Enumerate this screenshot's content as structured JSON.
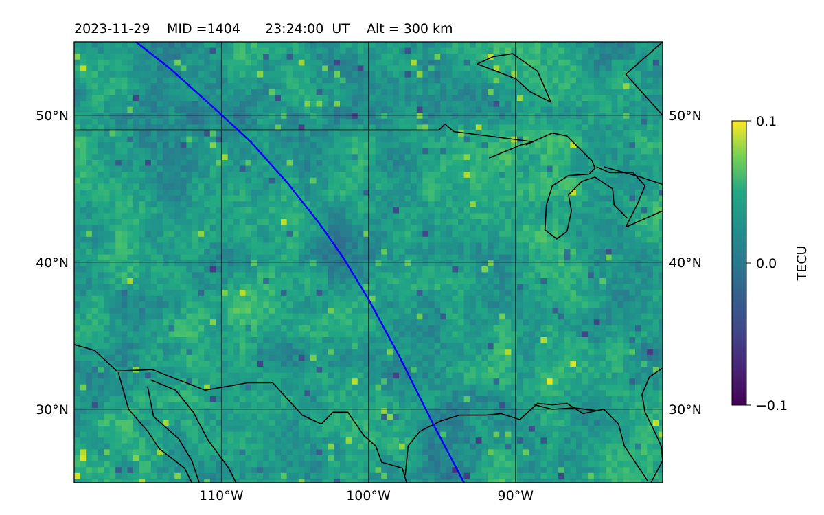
{
  "title": {
    "date": "2023-11-29",
    "mid": "MID =1404",
    "time": "23:24:00  UT",
    "alt": "Alt = 300 km"
  },
  "map": {
    "lon_range": [
      -120,
      -80
    ],
    "lat_range": [
      25,
      55
    ],
    "lat_ticks": [
      {
        "value": 50,
        "label": "50°N"
      },
      {
        "value": 40,
        "label": "40°N"
      },
      {
        "value": 30,
        "label": "30°N"
      }
    ],
    "lon_ticks": [
      {
        "value": -110,
        "label": "110°W"
      },
      {
        "value": -100,
        "label": "100°W"
      },
      {
        "value": -90,
        "label": "90°W"
      }
    ],
    "grid": true,
    "field": "dTEC",
    "colormap": "viridis",
    "track_color": "#0000ff",
    "track": [
      [
        -115.8,
        55
      ],
      [
        -113.5,
        53.2
      ],
      [
        -110.6,
        50.6
      ],
      [
        -108,
        48.2
      ],
      [
        -105.5,
        45.4
      ],
      [
        -103.3,
        42.6
      ],
      [
        -101.7,
        40.3
      ],
      [
        -100,
        37.5
      ],
      [
        -97.9,
        33.6
      ],
      [
        -95.6,
        29
      ],
      [
        -93.5,
        25
      ]
    ],
    "coastlines": [
      [
        [
          -120,
          49
        ],
        [
          -95.2,
          49
        ],
        [
          -94.8,
          49.4
        ],
        [
          -94.2,
          48.9
        ],
        [
          -88.8,
          48.2
        ],
        [
          -89.6,
          48.0
        ],
        [
          -91.8,
          47.1
        ]
      ],
      [
        [
          -120,
          34.4
        ],
        [
          -118.6,
          34.0
        ],
        [
          -117.1,
          32.6
        ],
        [
          -114.7,
          32.7
        ],
        [
          -111.1,
          31.3
        ],
        [
          -108.2,
          31.8
        ],
        [
          -106.5,
          31.8
        ],
        [
          -104.5,
          29.6
        ],
        [
          -103.2,
          29.0
        ],
        [
          -102.4,
          29.8
        ],
        [
          -101.4,
          29.8
        ],
        [
          -100.3,
          28.2
        ],
        [
          -99.5,
          27.5
        ],
        [
          -99.1,
          26.4
        ],
        [
          -97.7,
          26.0
        ],
        [
          -97.4,
          25.0
        ]
      ],
      [
        [
          -114.8,
          32.0
        ],
        [
          -113.1,
          31.3
        ],
        [
          -111.9,
          29.8
        ],
        [
          -110.9,
          27.9
        ],
        [
          -109.5,
          26.0
        ],
        [
          -109.0,
          25.0
        ]
      ],
      [
        [
          -115.0,
          31.5
        ],
        [
          -114.6,
          29.5
        ],
        [
          -112.9,
          28.0
        ],
        [
          -112.0,
          26.5
        ],
        [
          -111.5,
          25.0
        ]
      ],
      [
        [
          -117.0,
          32.5
        ],
        [
          -116.3,
          30.0
        ],
        [
          -115.0,
          28.5
        ],
        [
          -114.2,
          27.3
        ],
        [
          -112.5,
          26.0
        ],
        [
          -112.0,
          25.0
        ]
      ],
      [
        [
          -97.5,
          25.5
        ],
        [
          -97.3,
          27.5
        ],
        [
          -96.5,
          28.5
        ],
        [
          -95.1,
          29.2
        ],
        [
          -93.8,
          29.6
        ],
        [
          -92.0,
          29.6
        ],
        [
          -91.0,
          29.7
        ],
        [
          -89.7,
          29.3
        ],
        [
          -88.5,
          30.4
        ],
        [
          -87.5,
          30.3
        ],
        [
          -86.5,
          30.4
        ],
        [
          -85.4,
          29.7
        ],
        [
          -84.0,
          30.0
        ],
        [
          -83.0,
          29.0
        ],
        [
          -82.6,
          27.5
        ],
        [
          -81.6,
          26.0
        ],
        [
          -81.0,
          25.1
        ]
      ],
      [
        [
          -80.8,
          25.0
        ],
        [
          -80.0,
          26.5
        ],
        [
          -80.1,
          27.5
        ],
        [
          -80.6,
          28.6
        ],
        [
          -81.2,
          29.8
        ],
        [
          -81.4,
          31.0
        ],
        [
          -80.9,
          32.2
        ],
        [
          -80.0,
          32.8
        ]
      ],
      [
        [
          -80,
          50
        ],
        [
          -82.5,
          52.8
        ],
        [
          -80,
          55
        ]
      ],
      [
        [
          -89.3,
          48.0
        ],
        [
          -87.5,
          48.8
        ],
        [
          -86.5,
          48.6
        ],
        [
          -84.8,
          46.9
        ],
        [
          -84.6,
          46.4
        ],
        [
          -85.0,
          46.0
        ],
        [
          -86.4,
          45.9
        ],
        [
          -87.5,
          45.2
        ],
        [
          -87.9,
          43.9
        ],
        [
          -88.0,
          42.2
        ],
        [
          -87.2,
          41.6
        ],
        [
          -86.5,
          42.1
        ],
        [
          -86.2,
          43.5
        ],
        [
          -86.4,
          44.6
        ],
        [
          -85.5,
          45.5
        ],
        [
          -84.6,
          45.8
        ],
        [
          -83.4,
          45.0
        ],
        [
          -83.3,
          43.9
        ],
        [
          -82.4,
          43.0
        ]
      ],
      [
        [
          -84.5,
          46.5
        ],
        [
          -83.6,
          46.1
        ],
        [
          -82.0,
          46.1
        ],
        [
          -81.2,
          45.2
        ],
        [
          -81.7,
          44.0
        ],
        [
          -82.5,
          42.4
        ],
        [
          -80,
          43.5
        ]
      ],
      [
        [
          -84.0,
          46.5
        ],
        [
          -81.5,
          45.8
        ],
        [
          -80,
          45.3
        ]
      ],
      [
        [
          -88.7,
          30.3
        ],
        [
          -87.5,
          30.0
        ],
        [
          -86.0,
          30.1
        ],
        [
          -84.5,
          29.9
        ]
      ],
      [
        [
          -92.6,
          53.5
        ],
        [
          -90.0,
          52.5
        ],
        [
          -89.0,
          51.6
        ],
        [
          -87.6,
          50.9
        ],
        [
          -88.5,
          53.0
        ],
        [
          -90.2,
          54.2
        ],
        [
          -91.5,
          54.0
        ],
        [
          -92.6,
          53.5
        ]
      ]
    ]
  },
  "colorbar": {
    "label": "TECU",
    "ticks": [
      {
        "value": 0.1,
        "label": "0.1"
      },
      {
        "value": 0.0,
        "label": "0.0"
      },
      {
        "value": -0.1,
        "label": "−0.1"
      }
    ],
    "min": -0.1,
    "max": 0.1
  }
}
